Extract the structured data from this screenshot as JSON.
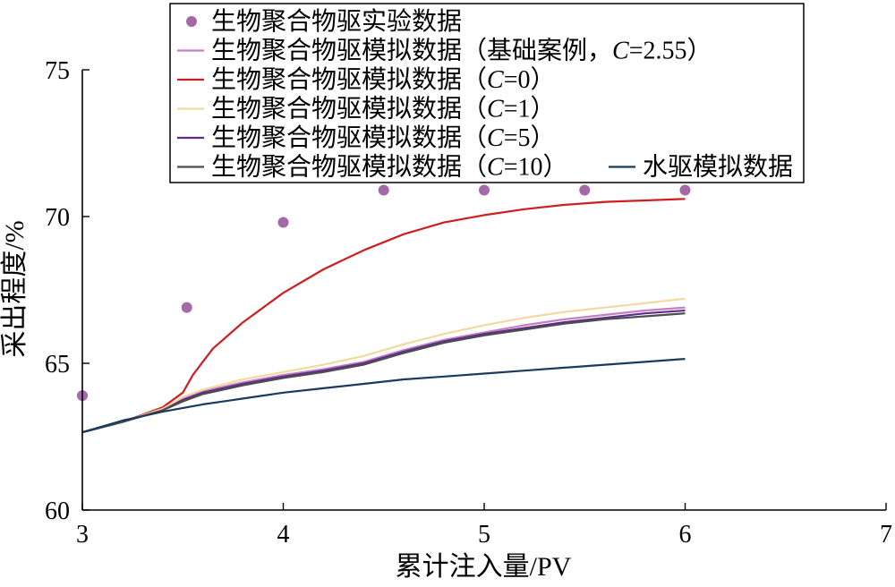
{
  "chart_data": {
    "type": "line",
    "title": "",
    "xlabel": "累计注入量/PV",
    "ylabel": "采出程度/%",
    "xlim": [
      3,
      7
    ],
    "ylim": [
      60,
      75
    ],
    "xticks": [
      "3",
      "4",
      "5",
      "6",
      "7"
    ],
    "yticks": [
      "60",
      "65",
      "70",
      "75"
    ],
    "grid": false,
    "legend_position": "top-right",
    "series": [
      {
        "name": "生物聚合物驱实验数据",
        "kind": "scatter",
        "color": "#a569a8",
        "points": [
          [
            3.0,
            63.9
          ],
          [
            3.52,
            66.9
          ],
          [
            4.0,
            69.8
          ],
          [
            4.5,
            70.9
          ],
          [
            5.0,
            70.9
          ],
          [
            5.5,
            70.9
          ],
          [
            6.0,
            70.9
          ]
        ]
      },
      {
        "name": "生物聚合物驱模拟数据（基础案例，C=2.55）",
        "legend_html": "生物聚合物驱模拟数据（基础案例，<tspan font-style=\"italic\">C</tspan>=2.55）",
        "kind": "line",
        "color": "#c77dc0",
        "points": [
          [
            3.0,
            62.65
          ],
          [
            3.2,
            63.0
          ],
          [
            3.4,
            63.45
          ],
          [
            3.5,
            63.8
          ],
          [
            3.6,
            64.05
          ],
          [
            3.8,
            64.35
          ],
          [
            4.0,
            64.6
          ],
          [
            4.2,
            64.8
          ],
          [
            4.4,
            65.05
          ],
          [
            4.6,
            65.45
          ],
          [
            4.8,
            65.8
          ],
          [
            5.0,
            66.05
          ],
          [
            5.2,
            66.3
          ],
          [
            5.4,
            66.5
          ],
          [
            5.6,
            66.65
          ],
          [
            5.8,
            66.8
          ],
          [
            6.0,
            66.9
          ]
        ]
      },
      {
        "name": "生物聚合物驱模拟数据（C=0）",
        "legend_html": "生物聚合物驱模拟数据（<tspan font-style=\"italic\">C</tspan>=0）",
        "kind": "line",
        "color": "#cc1f1f",
        "points": [
          [
            3.0,
            62.65
          ],
          [
            3.2,
            63.0
          ],
          [
            3.4,
            63.5
          ],
          [
            3.5,
            64.0
          ],
          [
            3.55,
            64.6
          ],
          [
            3.65,
            65.5
          ],
          [
            3.8,
            66.4
          ],
          [
            4.0,
            67.4
          ],
          [
            4.2,
            68.2
          ],
          [
            4.4,
            68.85
          ],
          [
            4.6,
            69.4
          ],
          [
            4.8,
            69.8
          ],
          [
            5.0,
            70.05
          ],
          [
            5.2,
            70.25
          ],
          [
            5.4,
            70.4
          ],
          [
            5.6,
            70.5
          ],
          [
            5.8,
            70.55
          ],
          [
            6.0,
            70.6
          ]
        ]
      },
      {
        "name": "生物聚合物驱模拟数据（C=1）",
        "legend_html": "生物聚合物驱模拟数据（<tspan font-style=\"italic\">C</tspan>=1）",
        "kind": "line",
        "color": "#f2d9a0",
        "points": [
          [
            3.0,
            62.65
          ],
          [
            3.2,
            63.0
          ],
          [
            3.4,
            63.45
          ],
          [
            3.5,
            63.85
          ],
          [
            3.6,
            64.1
          ],
          [
            3.8,
            64.45
          ],
          [
            4.0,
            64.7
          ],
          [
            4.2,
            64.95
          ],
          [
            4.4,
            65.25
          ],
          [
            4.6,
            65.65
          ],
          [
            4.8,
            66.0
          ],
          [
            5.0,
            66.3
          ],
          [
            5.2,
            66.55
          ],
          [
            5.4,
            66.75
          ],
          [
            5.6,
            66.9
          ],
          [
            5.8,
            67.05
          ],
          [
            6.0,
            67.2
          ]
        ]
      },
      {
        "name": "生物聚合物驱模拟数据（C=5）",
        "legend_html": "生物聚合物驱模拟数据（<tspan font-style=\"italic\">C</tspan>=5）",
        "kind": "line",
        "color": "#5b2d8c",
        "points": [
          [
            3.0,
            62.65
          ],
          [
            3.2,
            63.0
          ],
          [
            3.4,
            63.4
          ],
          [
            3.5,
            63.75
          ],
          [
            3.6,
            64.0
          ],
          [
            3.8,
            64.3
          ],
          [
            4.0,
            64.55
          ],
          [
            4.2,
            64.75
          ],
          [
            4.4,
            65.0
          ],
          [
            4.6,
            65.4
          ],
          [
            4.8,
            65.75
          ],
          [
            5.0,
            66.0
          ],
          [
            5.2,
            66.2
          ],
          [
            5.4,
            66.4
          ],
          [
            5.6,
            66.55
          ],
          [
            5.8,
            66.7
          ],
          [
            6.0,
            66.8
          ]
        ]
      },
      {
        "name": "生物聚合物驱模拟数据（C=10）",
        "legend_html": "生物聚合物驱模拟数据（<tspan font-style=\"italic\">C</tspan>=10）",
        "kind": "line",
        "color": "#4d4d4d",
        "points": [
          [
            3.0,
            62.65
          ],
          [
            3.2,
            63.0
          ],
          [
            3.4,
            63.4
          ],
          [
            3.5,
            63.7
          ],
          [
            3.6,
            63.95
          ],
          [
            3.8,
            64.25
          ],
          [
            4.0,
            64.5
          ],
          [
            4.2,
            64.7
          ],
          [
            4.4,
            64.95
          ],
          [
            4.6,
            65.35
          ],
          [
            4.8,
            65.7
          ],
          [
            5.0,
            65.95
          ],
          [
            5.2,
            66.15
          ],
          [
            5.4,
            66.35
          ],
          [
            5.6,
            66.5
          ],
          [
            5.8,
            66.6
          ],
          [
            6.0,
            66.7
          ]
        ]
      },
      {
        "name": "水驱模拟数据",
        "kind": "line",
        "color": "#1b3a5c",
        "points": [
          [
            3.0,
            62.65
          ],
          [
            3.2,
            63.05
          ],
          [
            3.4,
            63.35
          ],
          [
            3.6,
            63.6
          ],
          [
            3.8,
            63.8
          ],
          [
            4.0,
            64.0
          ],
          [
            4.2,
            64.15
          ],
          [
            4.4,
            64.3
          ],
          [
            4.6,
            64.45
          ],
          [
            4.8,
            64.55
          ],
          [
            5.0,
            64.65
          ],
          [
            5.2,
            64.75
          ],
          [
            5.4,
            64.85
          ],
          [
            5.6,
            64.95
          ],
          [
            5.8,
            65.05
          ],
          [
            6.0,
            65.15
          ]
        ]
      }
    ]
  }
}
